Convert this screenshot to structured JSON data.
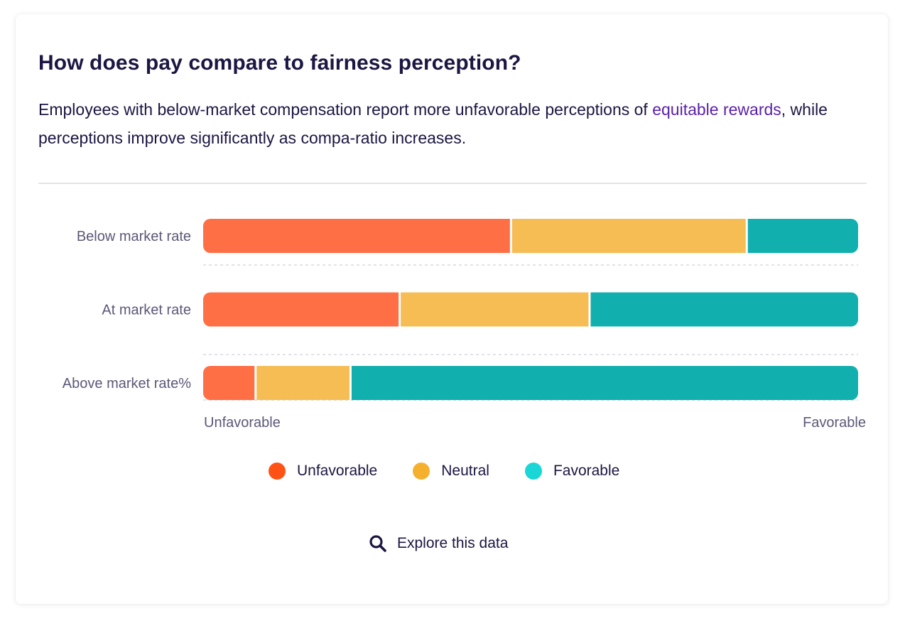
{
  "card": {
    "title": "How does pay compare to fairness perception?",
    "description_before": "Employees with below-market compensation report more unfavorable perceptions of ",
    "description_link": "equitable rewards",
    "description_after": ", while perceptions improve significantly as compa-ratio increases."
  },
  "colors": {
    "unfavorable": "#ff6f45",
    "neutral": "#f6bd55",
    "favorable": "#12afaf",
    "legend_unfavorable": "#ff5214",
    "legend_neutral": "#f5b02e",
    "legend_favorable": "#1bd6d6",
    "text_dark": "#1b1642",
    "text_muted": "#5b5878",
    "link": "#5a1fa8"
  },
  "chart_data": {
    "type": "bar",
    "orientation": "horizontal",
    "stacked": true,
    "normalized": true,
    "categories": [
      "Below market rate",
      "At market rate",
      "Above market rate%"
    ],
    "series": [
      {
        "name": "Unfavorable",
        "values": [
          47,
          30,
          8
        ]
      },
      {
        "name": "Neutral",
        "values": [
          36,
          29,
          14.5
        ]
      },
      {
        "name": "Favorable",
        "values": [
          17,
          41,
          77.5
        ]
      }
    ],
    "xlim": [
      0,
      100
    ],
    "x_axis_left_label": "Unfavorable",
    "x_axis_right_label": "Favorable",
    "legend_placement": "bottom-center"
  },
  "legend": [
    {
      "label": "Unfavorable",
      "color": "#ff5214"
    },
    {
      "label": "Neutral",
      "color": "#f5b02e"
    },
    {
      "label": "Favorable",
      "color": "#1bd6d6"
    }
  ],
  "explore": {
    "label": "Explore this data",
    "icon": "search-icon"
  }
}
